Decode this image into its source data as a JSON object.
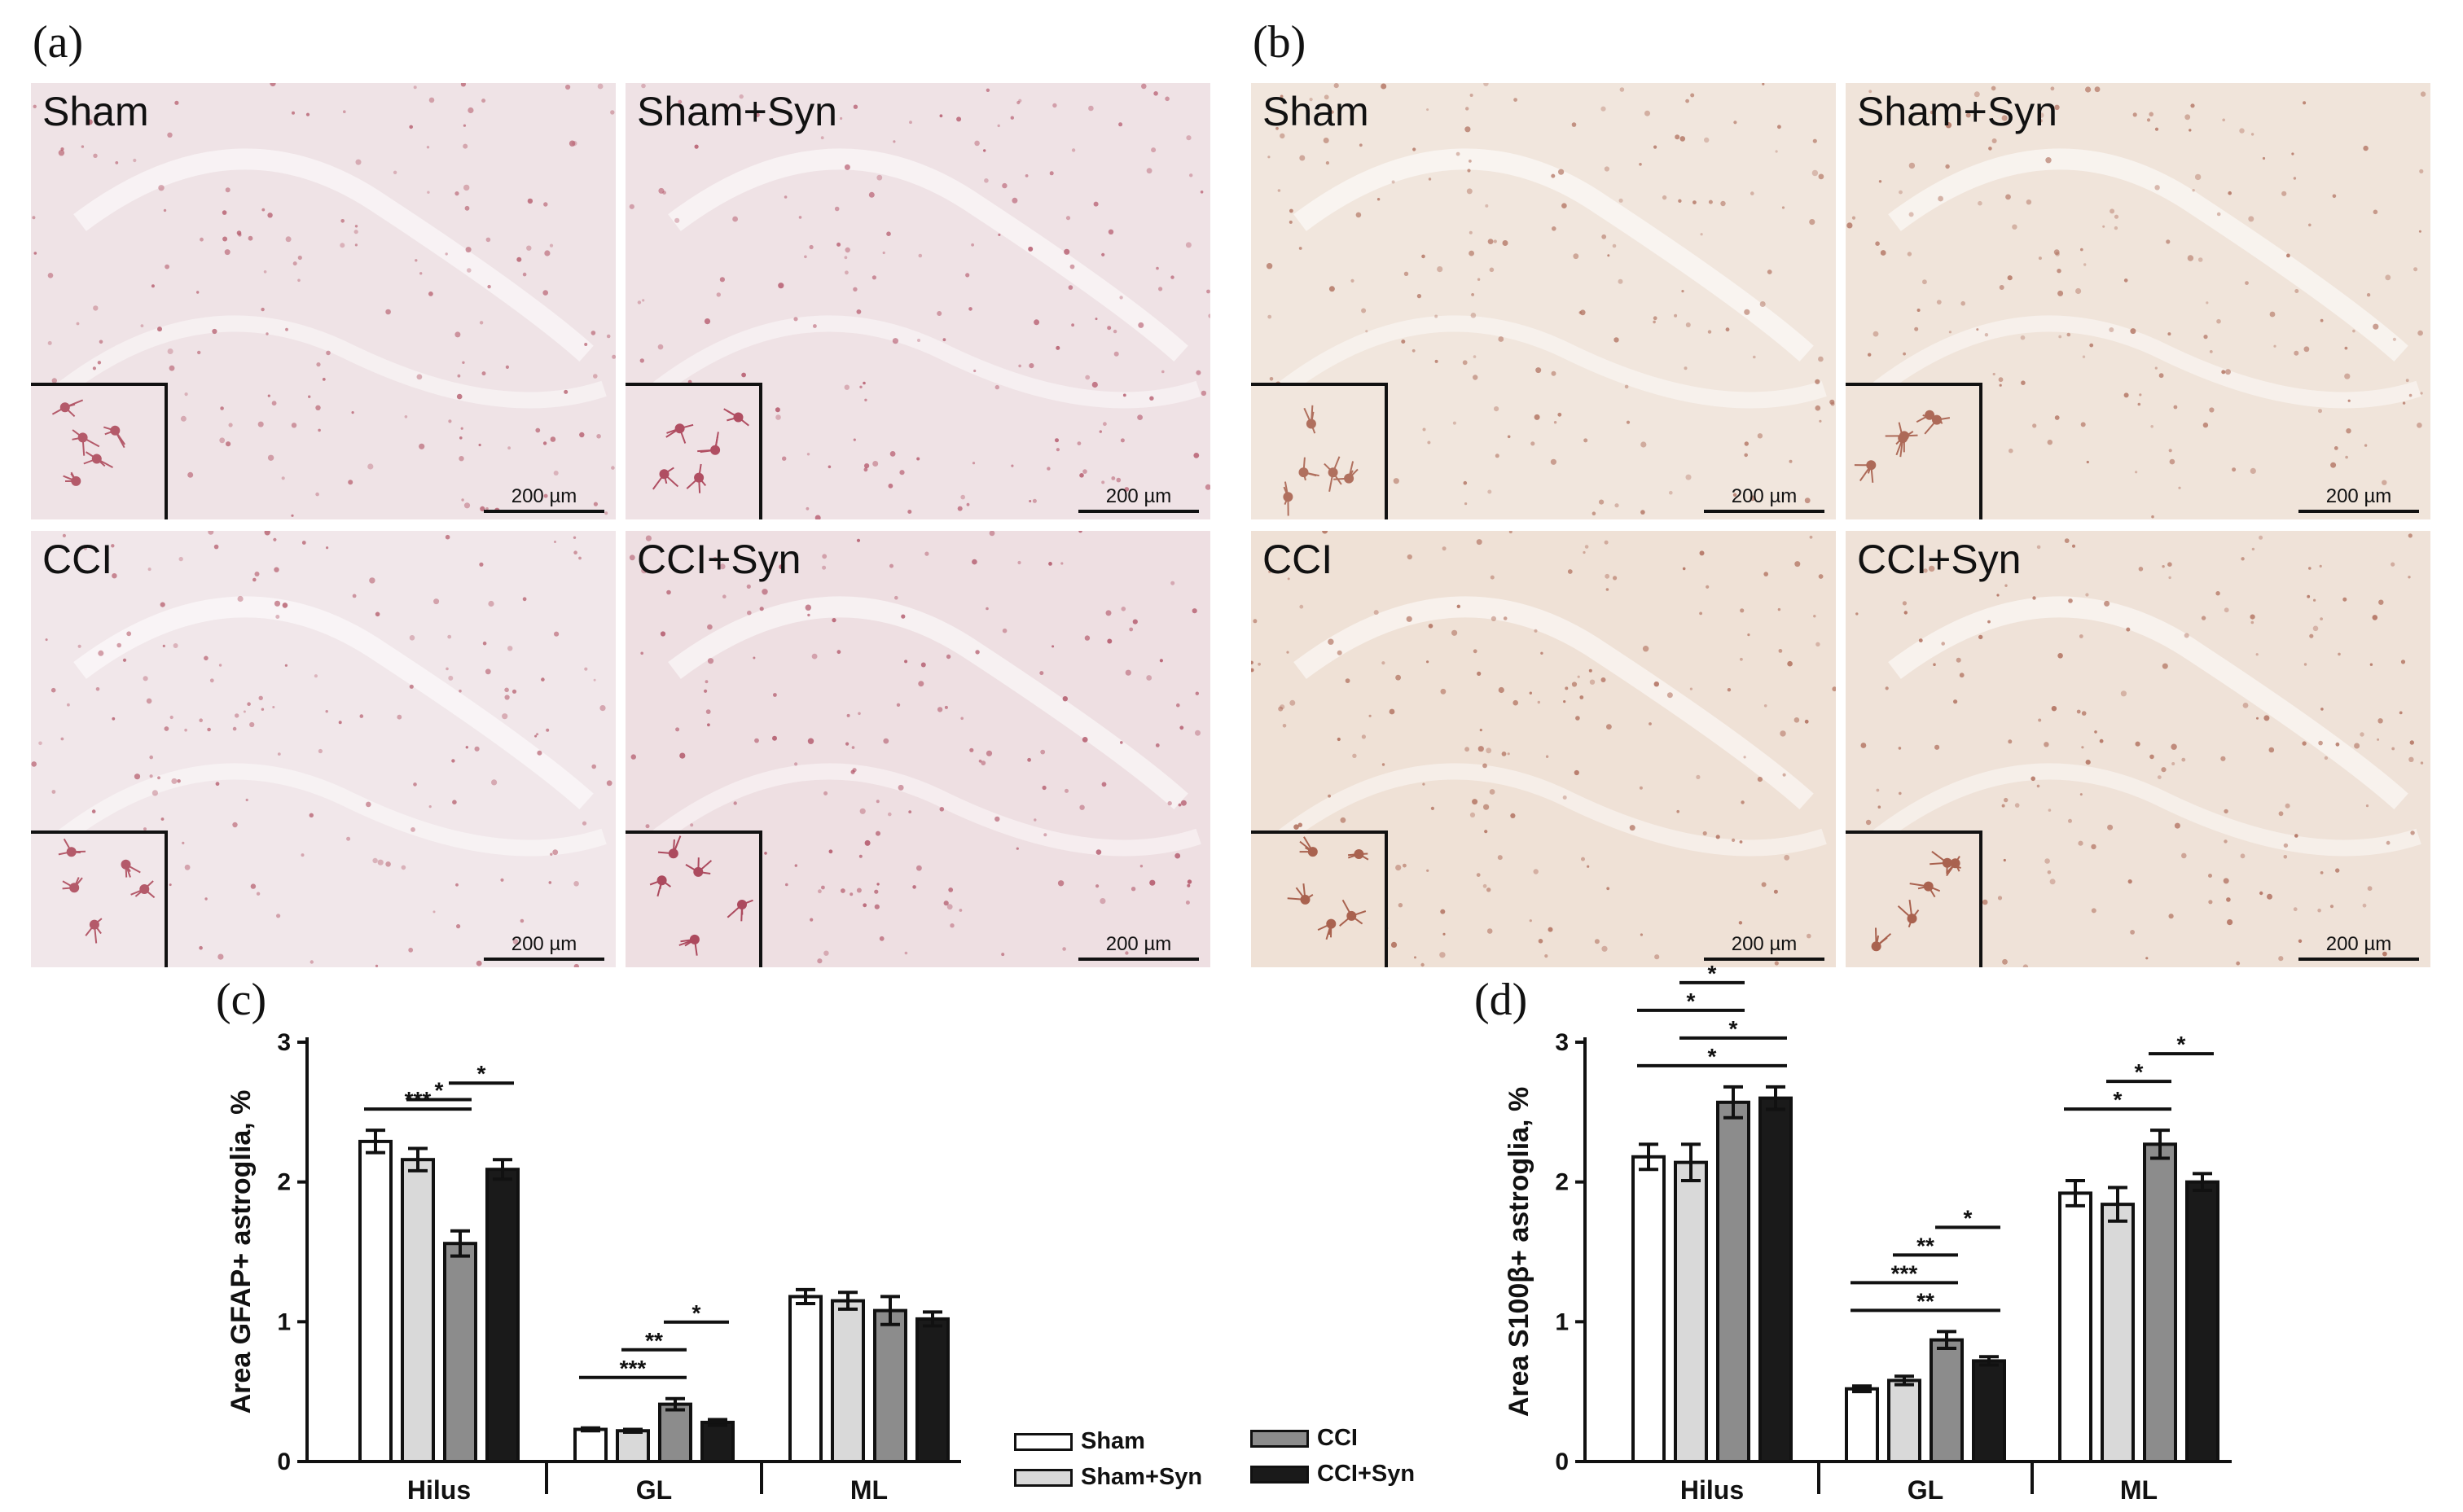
{
  "panel_labels": {
    "a": "(a)",
    "b": "(b)",
    "c": "(c)",
    "d": "(d)"
  },
  "micrographs": [
    {
      "id": "a-sham",
      "label": "Sham",
      "scale": "200 µm",
      "tint": "#efe3e6",
      "dot": "#b45a6a"
    },
    {
      "id": "a-shamsyn",
      "label": "Sham+Syn",
      "scale": "200 µm",
      "tint": "#efe2e5",
      "dot": "#b04e62"
    },
    {
      "id": "a-cci",
      "label": "CCI",
      "scale": "200 µm",
      "tint": "#f1e7ea",
      "dot": "#b45a6a"
    },
    {
      "id": "a-ccisyn",
      "label": "CCI+Syn",
      "scale": "200 µm",
      "tint": "#eedfe2",
      "dot": "#ac4a5e"
    },
    {
      "id": "b-sham",
      "label": "Sham",
      "scale": "200 µm",
      "tint": "#f1e6dd",
      "dot": "#b0705e"
    },
    {
      "id": "b-shamsyn",
      "label": "Sham+Syn",
      "scale": "200 µm",
      "tint": "#f0e4da",
      "dot": "#ad6a58"
    },
    {
      "id": "b-cci",
      "label": "CCI",
      "scale": "200 µm",
      "tint": "#efe1d6",
      "dot": "#a9624f"
    },
    {
      "id": "b-ccisyn",
      "label": "CCI+Syn",
      "scale": "200 µm",
      "tint": "#efe2d8",
      "dot": "#a9624f"
    }
  ],
  "legend": [
    {
      "name": "Sham",
      "color": "#ffffff"
    },
    {
      "name": "Sham+Syn",
      "color": "#d9d9d9"
    },
    {
      "name": "CCI",
      "color": "#8c8c8c"
    },
    {
      "name": "CCI+Syn",
      "color": "#1a1a1a"
    }
  ],
  "chart_data": [
    {
      "type": "bar",
      "panel": "(c)",
      "ylabel": "Area GFAP+ astroglia, %",
      "ylim": [
        0,
        3
      ],
      "yticks": [
        "0",
        "1",
        "2",
        "3"
      ],
      "categories": [
        "Hilus",
        "GL",
        "ML"
      ],
      "series": [
        {
          "name": "Sham",
          "values": [
            2.29,
            0.23,
            1.18
          ],
          "errors": [
            0.08,
            0.01,
            0.05
          ]
        },
        {
          "name": "Sham+Syn",
          "values": [
            2.16,
            0.22,
            1.15
          ],
          "errors": [
            0.08,
            0.01,
            0.06
          ]
        },
        {
          "name": "CCI",
          "values": [
            1.56,
            0.41,
            1.08
          ],
          "errors": [
            0.09,
            0.04,
            0.1
          ]
        },
        {
          "name": "CCI+Syn",
          "values": [
            2.09,
            0.28,
            1.02
          ],
          "errors": [
            0.07,
            0.02,
            0.05
          ]
        }
      ],
      "significance": [
        {
          "group": "Hilus",
          "from": "Sham",
          "to": "CCI",
          "label": "***"
        },
        {
          "group": "Hilus",
          "from": "Sham+Syn",
          "to": "CCI",
          "label": "*"
        },
        {
          "group": "Hilus",
          "from": "CCI",
          "to": "CCI+Syn",
          "label": "*"
        },
        {
          "group": "GL",
          "from": "Sham",
          "to": "CCI",
          "label": "***"
        },
        {
          "group": "GL",
          "from": "Sham+Syn",
          "to": "CCI",
          "label": "**"
        },
        {
          "group": "GL",
          "from": "CCI",
          "to": "CCI+Syn",
          "label": "*"
        }
      ]
    },
    {
      "type": "bar",
      "panel": "(d)",
      "ylabel": "Area S100β+ astroglia, %",
      "ylim": [
        0,
        3
      ],
      "yticks": [
        "0",
        "1",
        "2",
        "3"
      ],
      "categories": [
        "Hilus",
        "GL",
        "ML"
      ],
      "series": [
        {
          "name": "Sham",
          "values": [
            2.18,
            0.52,
            1.92
          ],
          "errors": [
            0.09,
            0.02,
            0.09
          ]
        },
        {
          "name": "Sham+Syn",
          "values": [
            2.14,
            0.58,
            1.84
          ],
          "errors": [
            0.13,
            0.03,
            0.12
          ]
        },
        {
          "name": "CCI",
          "values": [
            2.57,
            0.87,
            2.27
          ],
          "errors": [
            0.11,
            0.06,
            0.1
          ]
        },
        {
          "name": "CCI+Syn",
          "values": [
            2.6,
            0.72,
            2.0
          ],
          "errors": [
            0.08,
            0.03,
            0.06
          ]
        }
      ],
      "significance": [
        {
          "group": "Hilus",
          "from": "Sham",
          "to": "CCI+Syn",
          "label": "*"
        },
        {
          "group": "Hilus",
          "from": "Sham+Syn",
          "to": "CCI+Syn",
          "label": "*"
        },
        {
          "group": "Hilus",
          "from": "Sham",
          "to": "CCI",
          "label": "*"
        },
        {
          "group": "Hilus",
          "from": "Sham+Syn",
          "to": "CCI",
          "label": "*"
        },
        {
          "group": "GL",
          "from": "Sham",
          "to": "CCI+Syn",
          "label": "**"
        },
        {
          "group": "GL",
          "from": "Sham",
          "to": "CCI",
          "label": "***"
        },
        {
          "group": "GL",
          "from": "Sham+Syn",
          "to": "CCI",
          "label": "**"
        },
        {
          "group": "GL",
          "from": "CCI",
          "to": "CCI+Syn",
          "label": "*"
        },
        {
          "group": "ML",
          "from": "Sham",
          "to": "CCI",
          "label": "*"
        },
        {
          "group": "ML",
          "from": "Sham+Syn",
          "to": "CCI",
          "label": "*"
        },
        {
          "group": "ML",
          "from": "CCI",
          "to": "CCI+Syn",
          "label": "*"
        }
      ]
    }
  ]
}
